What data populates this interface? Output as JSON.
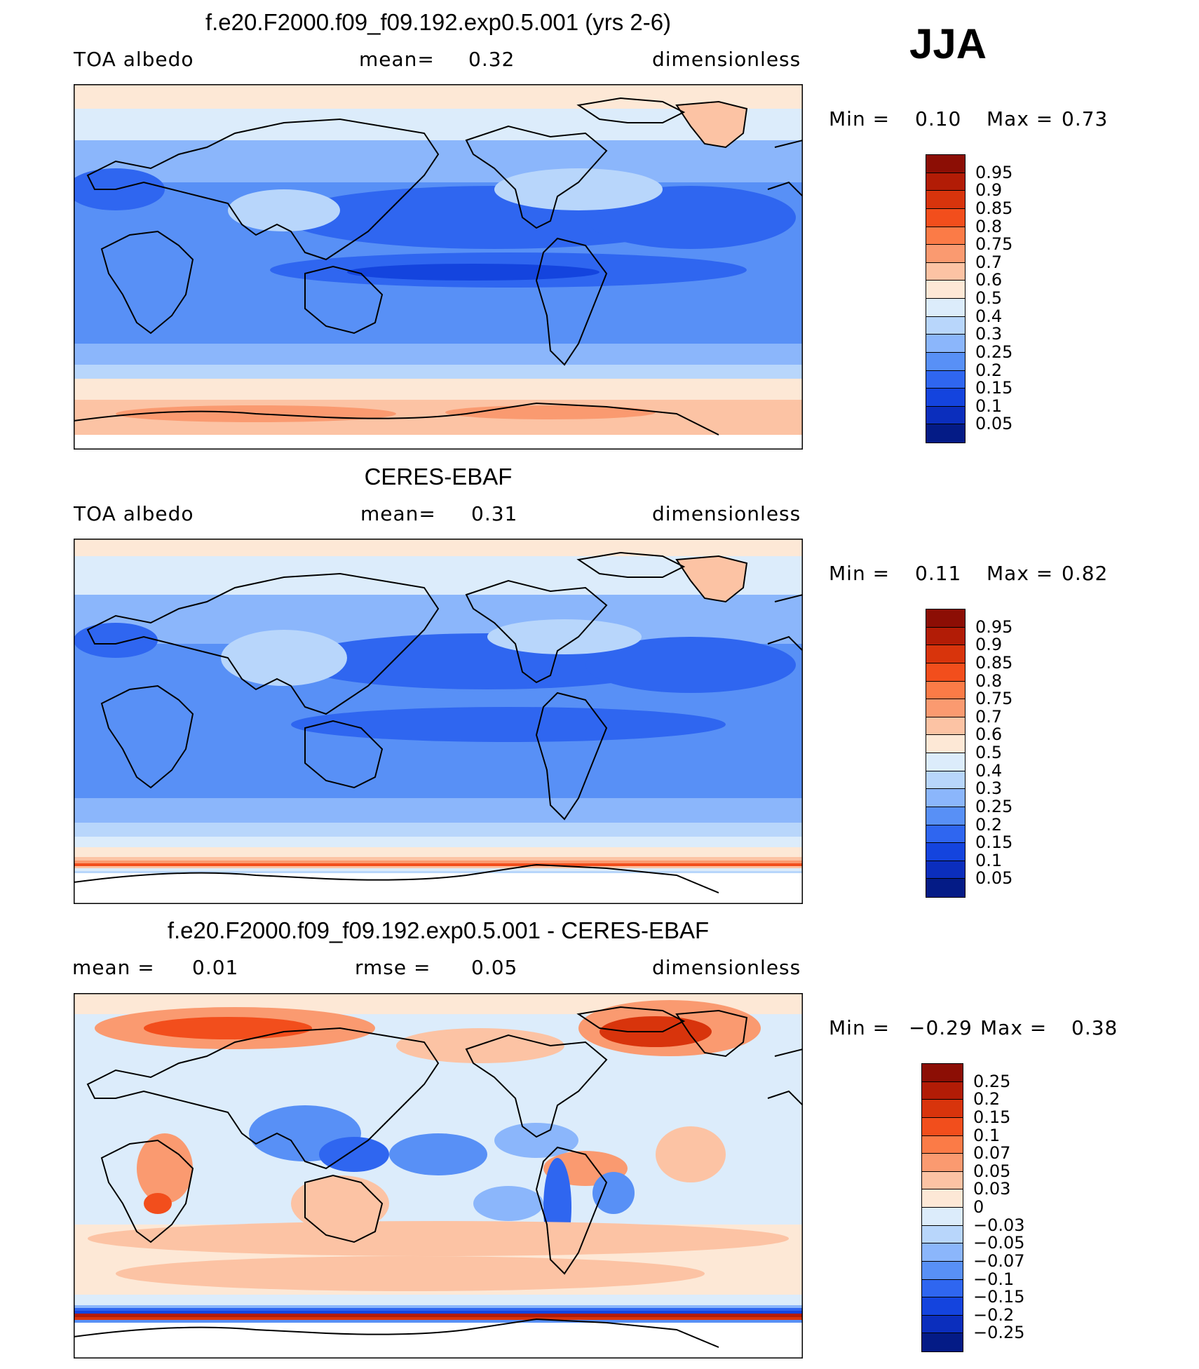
{
  "season": "JJA",
  "chart_data": [
    {
      "type": "heatmap",
      "title": "f.e20.F2000.f09_f09.192.exp0.5.001 (yrs 2-6)",
      "left_label": "TOA albedo",
      "center_label": "mean=",
      "center_value": "0.32",
      "right_label": "dimensionless",
      "min_label": "Min =",
      "min_value": "0.10",
      "max_label": "Max =",
      "max_value": "0.73",
      "levels": [
        "0.95",
        "0.9",
        "0.85",
        "0.8",
        "0.75",
        "0.7",
        "0.6",
        "0.5",
        "0.4",
        "0.3",
        "0.25",
        "0.2",
        "0.15",
        "0.1",
        "0.05"
      ],
      "colors": [
        "#8c0e05",
        "#b21c06",
        "#d8340c",
        "#f24e1c",
        "#fb7b47",
        "#fa9a70",
        "#fcc3a4",
        "#fde8d6",
        "#dcecfb",
        "#b8d6fb",
        "#8bb6fb",
        "#5890f6",
        "#2f66f0",
        "#1444de",
        "#0b2ebd",
        "#041b86"
      ]
    },
    {
      "type": "heatmap",
      "title": "CERES-EBAF",
      "left_label": "TOA albedo",
      "center_label": "mean=",
      "center_value": "0.31",
      "right_label": "dimensionless",
      "min_label": "Min =",
      "min_value": "0.11",
      "max_label": "Max =",
      "max_value": "0.82",
      "levels": [
        "0.95",
        "0.9",
        "0.85",
        "0.8",
        "0.75",
        "0.7",
        "0.6",
        "0.5",
        "0.4",
        "0.3",
        "0.25",
        "0.2",
        "0.15",
        "0.1",
        "0.05"
      ],
      "colors": [
        "#8c0e05",
        "#b21c06",
        "#d8340c",
        "#f24e1c",
        "#fb7b47",
        "#fa9a70",
        "#fcc3a4",
        "#fde8d6",
        "#dcecfb",
        "#b8d6fb",
        "#8bb6fb",
        "#5890f6",
        "#2f66f0",
        "#1444de",
        "#0b2ebd",
        "#041b86"
      ]
    },
    {
      "type": "heatmap",
      "title": "f.e20.F2000.f09_f09.192.exp0.5.001 - CERES-EBAF",
      "left_label": "mean =",
      "left_value": "0.01",
      "center_label": "rmse =",
      "center_value": "0.05",
      "right_label": "dimensionless",
      "min_label": "Min =",
      "min_value": "−0.29",
      "max_label": "Max =",
      "max_value": "0.38",
      "levels": [
        "0.25",
        "0.2",
        "0.15",
        "0.1",
        "0.07",
        "0.05",
        "0.03",
        "0",
        "−0.03",
        "−0.05",
        "−0.07",
        "−0.1",
        "−0.15",
        "−0.2",
        "−0.25"
      ],
      "colors": [
        "#8c0e05",
        "#b21c06",
        "#d8340c",
        "#f24e1c",
        "#fb7b47",
        "#fa9a70",
        "#fcc3a4",
        "#fde8d6",
        "#dcecfb",
        "#b8d6fb",
        "#8bb6fb",
        "#5890f6",
        "#2f66f0",
        "#1444de",
        "#0b2ebd",
        "#041b86"
      ]
    }
  ]
}
